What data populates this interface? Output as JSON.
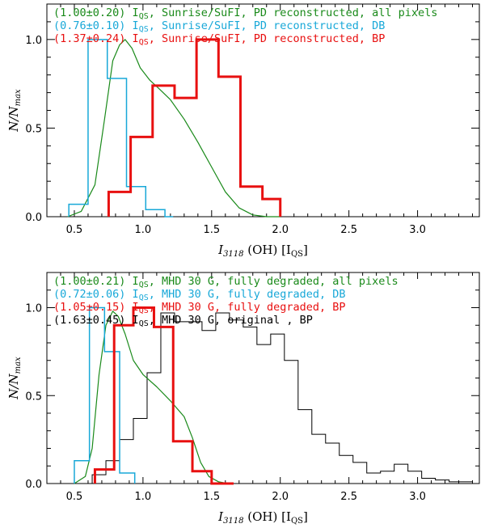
{
  "chart_data": [
    {
      "type": "step-histogram",
      "panel": "top",
      "xlabel": "I_3118 (OH) [I_QS]",
      "ylabel": "N/N_max",
      "xlim": [
        0.3,
        3.45
      ],
      "ylim": [
        0,
        1.2
      ],
      "xticks": [
        0.5,
        1.0,
        1.5,
        2.0,
        2.5,
        3.0
      ],
      "xtick_labels": [
        "0.5",
        "1.0",
        "1.5",
        "2.0",
        "2.5",
        "3.0"
      ],
      "yticks": [
        0,
        0.5,
        1.0
      ],
      "ytick_labels": [
        "0.0",
        "0.5",
        "1.0"
      ],
      "legend": [
        {
          "text": "(1.00±0.20) I_QS, Sunrise/SuFI, PD reconstructed, all pixels",
          "color": "#1a8a1a"
        },
        {
          "text": "(0.76±0.10) I_QS, Sunrise/SuFI, PD reconstructed, DB",
          "color": "#18a8d8"
        },
        {
          "text": "(1.37±0.24) I_QS, Sunrise/SuFI, PD reconstructed, BP",
          "color": "#e81010"
        }
      ],
      "series": [
        {
          "name": "all pixels",
          "color": "#1a8a1a",
          "style": "smooth",
          "width": 1.2,
          "x": [
            0.45,
            0.55,
            0.65,
            0.72,
            0.78,
            0.83,
            0.87,
            0.92,
            0.98,
            1.05,
            1.12,
            1.2,
            1.3,
            1.4,
            1.5,
            1.6,
            1.7,
            1.8,
            1.9,
            2.0
          ],
          "y": [
            0.0,
            0.03,
            0.18,
            0.55,
            0.88,
            0.97,
            1.0,
            0.95,
            0.84,
            0.77,
            0.72,
            0.66,
            0.55,
            0.42,
            0.28,
            0.14,
            0.05,
            0.01,
            0.0,
            0.0
          ]
        },
        {
          "name": "DB",
          "color": "#18a8d8",
          "style": "step",
          "width": 1.5,
          "edges": [
            0.46,
            0.6,
            0.74,
            0.88,
            1.02,
            1.16,
            1.22
          ],
          "values": [
            0.07,
            1.0,
            0.78,
            0.17,
            0.04,
            0.0
          ]
        },
        {
          "name": "BP",
          "color": "#e81010",
          "style": "step",
          "width": 3,
          "edges": [
            0.75,
            0.91,
            1.07,
            1.23,
            1.39,
            1.55,
            1.71,
            1.87,
            2.0
          ],
          "values": [
            0.14,
            0.45,
            0.74,
            0.67,
            1.0,
            0.79,
            0.17,
            0.1
          ]
        }
      ]
    },
    {
      "type": "step-histogram",
      "panel": "bottom",
      "xlabel": "I_3118 (OH) [I_QS]",
      "ylabel": "N/N_max",
      "xlim": [
        0.3,
        3.45
      ],
      "ylim": [
        0,
        1.2
      ],
      "xticks": [
        0.5,
        1.0,
        1.5,
        2.0,
        2.5,
        3.0
      ],
      "xtick_labels": [
        "0.5",
        "1.0",
        "1.5",
        "2.0",
        "2.5",
        "3.0"
      ],
      "yticks": [
        0,
        0.5,
        1.0
      ],
      "ytick_labels": [
        "0.0",
        "0.5",
        "1.0"
      ],
      "legend": [
        {
          "text": "(1.00±0.21) I_QS, MHD 30 G, fully degraded, all pixels",
          "color": "#1a8a1a"
        },
        {
          "text": "(0.72±0.06) I_QS, MHD 30 G, fully degraded, DB",
          "color": "#18a8d8"
        },
        {
          "text": "(1.05±0.15) I_QS, MHD 30 G, fully degraded, BP",
          "color": "#e81010"
        },
        {
          "text": "(1.63±0.45) I_QS, MHD 30 G, original        , BP",
          "color": "#000000"
        }
      ],
      "series": [
        {
          "name": "original BP",
          "color": "#000000",
          "style": "step",
          "width": 1,
          "edges": [
            0.63,
            0.73,
            0.83,
            0.93,
            1.03,
            1.13,
            1.23,
            1.33,
            1.43,
            1.53,
            1.63,
            1.73,
            1.83,
            1.93,
            2.03,
            2.13,
            2.23,
            2.33,
            2.43,
            2.53,
            2.63,
            2.73,
            2.83,
            2.93,
            3.03,
            3.13,
            3.23,
            3.33,
            3.4
          ],
          "values": [
            0.05,
            0.13,
            0.25,
            0.37,
            0.63,
            0.97,
            0.92,
            0.92,
            0.87,
            0.97,
            0.93,
            0.89,
            0.79,
            0.85,
            0.7,
            0.42,
            0.28,
            0.23,
            0.16,
            0.12,
            0.06,
            0.07,
            0.11,
            0.07,
            0.03,
            0.02,
            0.01,
            0.01
          ]
        },
        {
          "name": "all pixels",
          "color": "#1a8a1a",
          "style": "smooth",
          "width": 1.2,
          "x": [
            0.5,
            0.58,
            0.63,
            0.68,
            0.73,
            0.78,
            0.82,
            0.87,
            0.93,
            1.0,
            1.1,
            1.2,
            1.3,
            1.36,
            1.42,
            1.48,
            1.55,
            1.62
          ],
          "y": [
            0.0,
            0.04,
            0.2,
            0.62,
            0.9,
            0.98,
            0.95,
            0.85,
            0.7,
            0.62,
            0.55,
            0.47,
            0.38,
            0.26,
            0.12,
            0.04,
            0.01,
            0.0
          ]
        },
        {
          "name": "DB",
          "color": "#18a8d8",
          "style": "step",
          "width": 1.5,
          "edges": [
            0.5,
            0.61,
            0.72,
            0.83,
            0.94
          ],
          "values": [
            0.13,
            1.0,
            0.75,
            0.06
          ]
        },
        {
          "name": "BP",
          "color": "#e81010",
          "style": "step",
          "width": 3,
          "edges": [
            0.65,
            0.79,
            0.93,
            1.08,
            1.22,
            1.36,
            1.5,
            1.66
          ],
          "values": [
            0.08,
            0.9,
            1.0,
            0.89,
            0.24,
            0.07,
            0.0
          ]
        }
      ]
    }
  ]
}
